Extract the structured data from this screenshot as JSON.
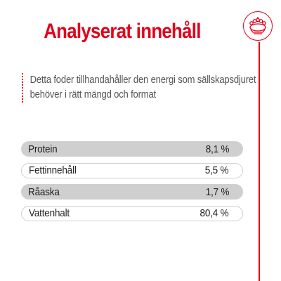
{
  "title": "Analyserat innehåll",
  "description": "Detta foder tillhandahåller den energi som sällskapsdjuret behöver i rätt mängd och format",
  "brand_icon": "crown-icon",
  "colors": {
    "accent": "#e2001a",
    "row_shaded": "#cfcfcf",
    "text": "#222222",
    "description_text": "#555555"
  },
  "nutrients": [
    {
      "name": "Protein",
      "value": "8,1 %"
    },
    {
      "name": "Fettinnehåll",
      "value": "5,5 %"
    },
    {
      "name": "Råaska",
      "value": "1,7 %"
    },
    {
      "name": "Vattenhalt",
      "value": "80,4 %"
    }
  ]
}
